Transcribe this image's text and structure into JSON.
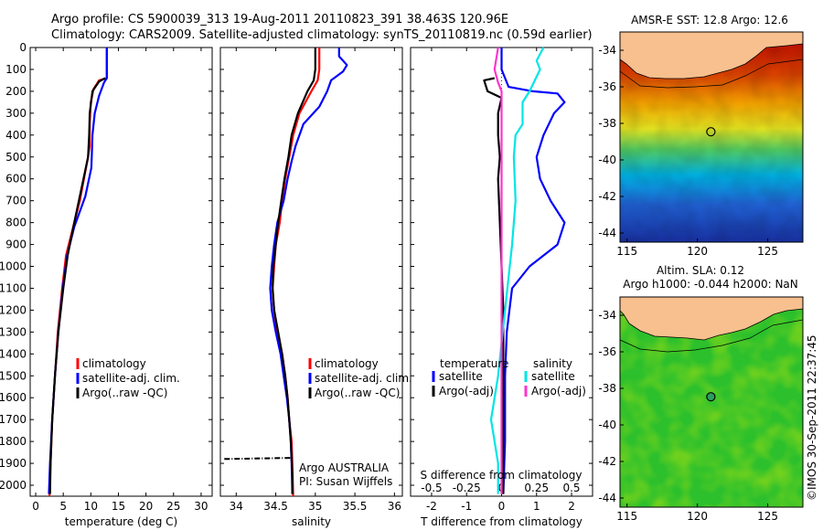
{
  "header": {
    "line1": "Argo profile: CS 5900039_313 19-Aug-2011 20110823_391 38.463S 120.96E",
    "line2": "Climatology: CARS2009. Satellite-adjusted climatology: synTS_20110819.nc (0.59d earlier)"
  },
  "colors": {
    "climatology": "#ff0000",
    "satellite": "#0000ff",
    "argo": "#000000",
    "satellite_salinity": "#00e5e5",
    "argo_salinity": "#ff33cc",
    "land": "#f7c08e"
  },
  "chart_data": [
    {
      "id": "temperature",
      "type": "line",
      "xlabel": "temperature (deg C)",
      "ylabel": "",
      "xlim": [
        -1,
        32
      ],
      "ylim": [
        2050,
        0
      ],
      "xticks": [
        0,
        5,
        10,
        15,
        20,
        25,
        30
      ],
      "yticks": [
        0,
        100,
        200,
        300,
        400,
        500,
        600,
        700,
        800,
        900,
        1000,
        1100,
        1200,
        1300,
        1400,
        1500,
        1600,
        1700,
        1800,
        1900,
        2000
      ],
      "legend": [
        "climatology",
        "satellite-adj. clim.",
        "Argo(..raw -QC)"
      ],
      "series": [
        {
          "name": "climatology",
          "color": "#ff0000",
          "points": [
            [
              12.9,
              0
            ],
            [
              12.9,
              100
            ],
            [
              12.9,
              140
            ],
            [
              11.5,
              150
            ],
            [
              10.5,
              190
            ],
            [
              10,
              250
            ],
            [
              9.8,
              350
            ],
            [
              9.8,
              450
            ],
            [
              9.5,
              500
            ],
            [
              8,
              700
            ],
            [
              6.5,
              850
            ],
            [
              5.5,
              950
            ],
            [
              4.8,
              1100
            ],
            [
              4,
              1300
            ],
            [
              3.5,
              1500
            ],
            [
              3,
              1700
            ],
            [
              2.7,
              1900
            ],
            [
              2.5,
              2050
            ]
          ]
        },
        {
          "name": "satellite-adj. clim.",
          "color": "#0000ff",
          "points": [
            [
              12.9,
              0
            ],
            [
              12.9,
              100
            ],
            [
              12.9,
              140
            ],
            [
              12.4,
              160
            ],
            [
              11.5,
              220
            ],
            [
              10.7,
              300
            ],
            [
              10.3,
              400
            ],
            [
              10.2,
              480
            ],
            [
              10.1,
              550
            ],
            [
              9,
              680
            ],
            [
              7,
              820
            ],
            [
              5.7,
              950
            ],
            [
              4.9,
              1100
            ],
            [
              4.1,
              1300
            ],
            [
              3.5,
              1500
            ],
            [
              3,
              1700
            ],
            [
              2.6,
              1900
            ],
            [
              2.4,
              2040
            ]
          ]
        },
        {
          "name": "Argo(..raw -QC)",
          "color": "#000000",
          "points": [
            [
              12.6,
              140
            ],
            [
              11.5,
              155
            ],
            [
              10.3,
              200
            ],
            [
              9.8,
              300
            ],
            [
              9.7,
              400
            ],
            [
              9.5,
              500
            ],
            [
              8.5,
              620
            ],
            [
              7,
              800
            ],
            [
              5.8,
              950
            ],
            [
              5,
              1100
            ],
            [
              4.1,
              1300
            ],
            [
              3.5,
              1500
            ],
            [
              3,
              1700
            ],
            [
              2.7,
              1900
            ],
            [
              2.6,
              2040
            ]
          ]
        }
      ]
    },
    {
      "id": "salinity",
      "type": "line",
      "xlabel": "salinity",
      "ylabel": "",
      "xlim": [
        33.8,
        36.1
      ],
      "ylim": [
        2050,
        0
      ],
      "xticks": [
        34,
        34.5,
        35,
        35.5,
        36
      ],
      "legend": [
        "climatology",
        "satellite-adj. clim.",
        "Argo(..raw -QC)"
      ],
      "annotations": [
        "Argo AUSTRALIA",
        "PI: Susan Wijffels"
      ],
      "series": [
        {
          "name": "climatology",
          "color": "#ff0000",
          "points": [
            [
              35.05,
              0
            ],
            [
              35.05,
              100
            ],
            [
              35.03,
              150
            ],
            [
              34.95,
              200
            ],
            [
              34.8,
              300
            ],
            [
              34.72,
              400
            ],
            [
              34.67,
              500
            ],
            [
              34.62,
              600
            ],
            [
              34.58,
              700
            ],
            [
              34.55,
              800
            ],
            [
              34.5,
              900
            ],
            [
              34.48,
              1000
            ],
            [
              34.46,
              1100
            ],
            [
              34.48,
              1200
            ],
            [
              34.52,
              1300
            ],
            [
              34.58,
              1400
            ],
            [
              34.62,
              1500
            ],
            [
              34.65,
              1600
            ],
            [
              34.67,
              1700
            ],
            [
              34.7,
              1800
            ],
            [
              34.71,
              1900
            ],
            [
              34.72,
              2050
            ]
          ]
        },
        {
          "name": "satellite-adj. clim.",
          "color": "#0000ff",
          "points": [
            [
              35.3,
              0
            ],
            [
              35.3,
              40
            ],
            [
              35.4,
              80
            ],
            [
              35.35,
              110
            ],
            [
              35.2,
              150
            ],
            [
              35.15,
              200
            ],
            [
              35.05,
              270
            ],
            [
              34.85,
              350
            ],
            [
              34.75,
              450
            ],
            [
              34.7,
              520
            ],
            [
              34.65,
              600
            ],
            [
              34.6,
              700
            ],
            [
              34.52,
              800
            ],
            [
              34.48,
              900
            ],
            [
              34.45,
              1000
            ],
            [
              34.43,
              1100
            ],
            [
              34.45,
              1200
            ],
            [
              34.5,
              1300
            ],
            [
              34.56,
              1400
            ],
            [
              34.6,
              1500
            ],
            [
              34.64,
              1600
            ],
            [
              34.67,
              1700
            ],
            [
              34.69,
              1800
            ],
            [
              34.7,
              1900
            ],
            [
              34.71,
              2040
            ]
          ]
        },
        {
          "name": "Argo(..raw -QC)",
          "color": "#000000",
          "points": [
            [
              35.0,
              0
            ],
            [
              35.0,
              100
            ],
            [
              34.98,
              150
            ],
            [
              34.9,
              200
            ],
            [
              34.78,
              300
            ],
            [
              34.7,
              400
            ],
            [
              34.66,
              500
            ],
            [
              34.61,
              600
            ],
            [
              34.57,
              700
            ],
            [
              34.53,
              800
            ],
            [
              34.5,
              900
            ],
            [
              34.47,
              1000
            ],
            [
              34.46,
              1100
            ],
            [
              34.48,
              1200
            ],
            [
              34.53,
              1300
            ],
            [
              34.58,
              1400
            ],
            [
              34.62,
              1500
            ],
            [
              34.65,
              1600
            ],
            [
              34.67,
              1700
            ],
            [
              34.69,
              1800
            ],
            [
              34.7,
              1880
            ],
            [
              34.71,
              1950
            ],
            [
              34.71,
              2040
            ]
          ]
        },
        {
          "name": "",
          "color": "#000000",
          "dashed": true,
          "points": [
            [
              33.85,
              1880
            ],
            [
              34.7,
              1875
            ]
          ]
        }
      ]
    },
    {
      "id": "difference",
      "type": "line",
      "xlabel": "T difference from climatology",
      "xlabel_top": "S difference from climatology",
      "xlim": [
        -2.6,
        2.6
      ],
      "ylim": [
        2050,
        0
      ],
      "xticks": [
        -2,
        -1,
        0,
        1,
        2
      ],
      "xtick_labels": [
        "-2",
        "-1",
        "0",
        "1",
        "2"
      ],
      "top_ticks": [
        -0.5,
        -0.25,
        0,
        0.25,
        0.5
      ],
      "legend_titles": [
        "temperature",
        "salinity"
      ],
      "legend": [
        "satellite",
        "Argo(-adj)",
        "satellite",
        "Argo(-adj)"
      ],
      "series": [
        {
          "name": "satellite",
          "color": "#0000ff",
          "points": [
            [
              0,
              0
            ],
            [
              0,
              100
            ],
            [
              0.2,
              180
            ],
            [
              0.9,
              200
            ],
            [
              1.6,
              210
            ],
            [
              1.8,
              250
            ],
            [
              1.5,
              300
            ],
            [
              1.2,
              400
            ],
            [
              1.0,
              500
            ],
            [
              1.1,
              600
            ],
            [
              1.4,
              700
            ],
            [
              1.8,
              800
            ],
            [
              1.6,
              900
            ],
            [
              0.8,
              1000
            ],
            [
              0.3,
              1100
            ],
            [
              0.15,
              1300
            ],
            [
              0.1,
              1500
            ],
            [
              0.1,
              1800
            ],
            [
              0.05,
              2040
            ]
          ]
        },
        {
          "name": "Argo(-adj)",
          "color": "#000000",
          "points": [
            [
              -0.2,
              140
            ],
            [
              -0.5,
              150
            ],
            [
              -0.4,
              200
            ],
            [
              0.0,
              230
            ],
            [
              -0.1,
              300
            ],
            [
              -0.1,
              400
            ],
            [
              -0.05,
              500
            ],
            [
              -0.1,
              600
            ],
            [
              -0.05,
              800
            ],
            [
              0.0,
              1000
            ],
            [
              0.05,
              1200
            ],
            [
              0.05,
              1500
            ],
            [
              0.05,
              1800
            ],
            [
              0.05,
              2040
            ]
          ]
        },
        {
          "name": "satellite",
          "color": "#00e5e5",
          "points": [
            [
              1.2,
              0
            ],
            [
              1.0,
              60
            ],
            [
              1.1,
              100
            ],
            [
              0.8,
              200
            ],
            [
              0.6,
              250
            ],
            [
              0.6,
              350
            ],
            [
              0.4,
              400
            ],
            [
              0.35,
              500
            ],
            [
              0.4,
              700
            ],
            [
              0.3,
              900
            ],
            [
              0.1,
              1200
            ],
            [
              -0.1,
              1500
            ],
            [
              -0.3,
              1700
            ],
            [
              -0.1,
              1900
            ],
            [
              -0.1,
              2040
            ]
          ]
        },
        {
          "name": "Argo(-adj)",
          "color": "#ff33cc",
          "points": [
            [
              -0.1,
              0
            ],
            [
              -0.2,
              100
            ],
            [
              -0.1,
              160
            ],
            [
              0.0,
              200
            ],
            [
              0.0,
              400
            ],
            [
              0.0,
              600
            ],
            [
              0.0,
              800
            ],
            [
              0.0,
              1000
            ],
            [
              0.0,
              1500
            ],
            [
              0.0,
              2040
            ]
          ]
        }
      ]
    },
    {
      "id": "sst-map",
      "type": "heatmap",
      "title": "AMSR-E SST: 12.8 Argo: 12.6",
      "xlim": [
        114.5,
        127.5
      ],
      "ylim": [
        -44.5,
        -33
      ],
      "xticks": [
        115,
        120,
        125
      ],
      "yticks": [
        -34,
        -36,
        -38,
        -40,
        -42,
        -44
      ],
      "marker": [
        120.96,
        -38.46
      ]
    },
    {
      "id": "sla-map",
      "type": "heatmap",
      "title": "Altim. SLA: 0.12",
      "subtitle": "Argo h1000: -0.044 h2000: NaN",
      "xlim": [
        114.5,
        127.5
      ],
      "ylim": [
        -44.5,
        -33
      ],
      "xticks": [
        115,
        120,
        125
      ],
      "yticks": [
        -34,
        -36,
        -38,
        -40,
        -42,
        -44
      ],
      "marker": [
        120.96,
        -38.46
      ]
    }
  ],
  "footer": {
    "credit": "©IMOS 30-Sep-2011 22:37:45"
  }
}
